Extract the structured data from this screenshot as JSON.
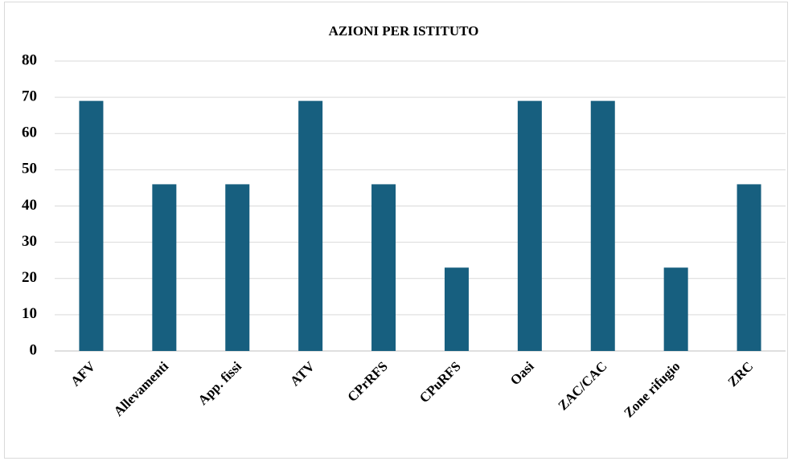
{
  "chart_data": {
    "type": "bar",
    "title": "AZIONI PER ISTITUTO",
    "categories": [
      "AFV",
      "Allevamenti",
      "App. fissi",
      "ATV",
      "CPrRFS",
      "CPuRFS",
      "Oasi",
      "ZAC/CAC",
      "Zone rifugio",
      "ZRC"
    ],
    "values": [
      69,
      46,
      46,
      69,
      46,
      23,
      69,
      69,
      23,
      46
    ],
    "color": "#175f7f",
    "ylim": [
      0,
      80
    ],
    "yticks": [
      0,
      10,
      20,
      30,
      40,
      50,
      60,
      70,
      80
    ],
    "grid": true
  }
}
